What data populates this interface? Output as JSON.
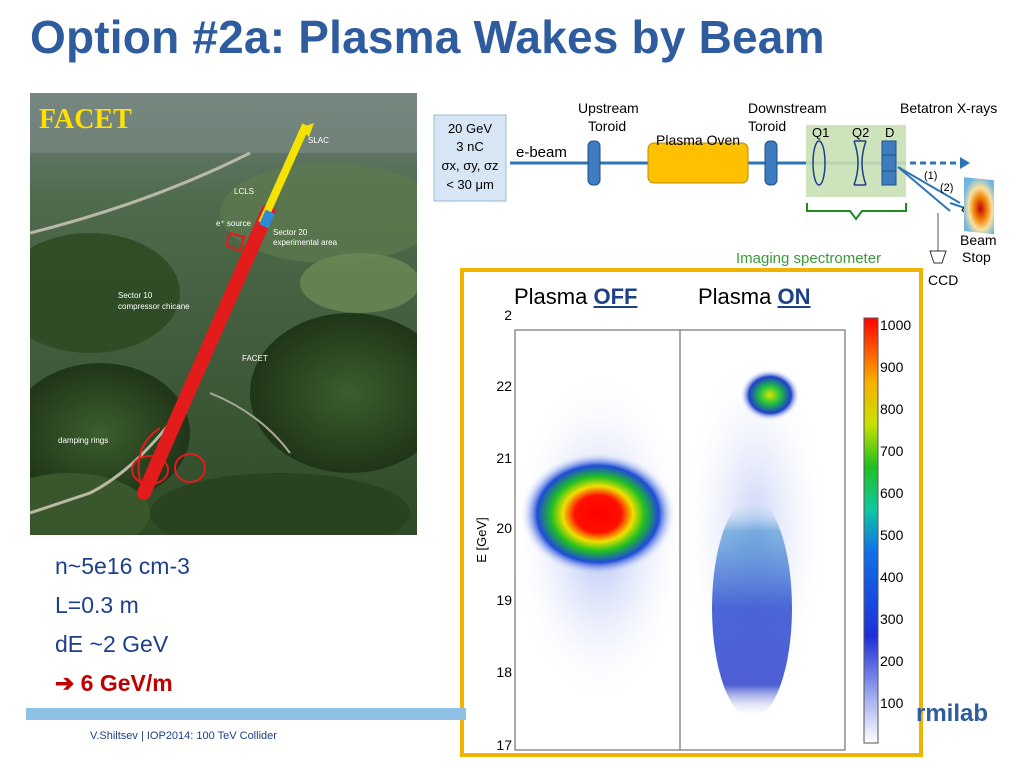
{
  "slide": {
    "title": "Option #2a: Plasma Wakes by Beam",
    "footer": "V.Shiltsev | IOP2014: 100 TeV Collider",
    "logo": "rmilab"
  },
  "photo": {
    "label": "FACET",
    "annotations": [
      "SLAC",
      "LCLS",
      "e⁺ source",
      "Sector 20",
      "experimental area",
      "Sector 10",
      "compressor chicane",
      "FACET",
      "damping rings"
    ]
  },
  "bullets": {
    "line1": "n~5e16 cm-3",
    "line2": "L=0.3 m",
    "line3": "dE ~2 GeV",
    "line4": "6 GeV/m",
    "arrow": "➔"
  },
  "schematic": {
    "beam_params": [
      "20  GeV",
      "3 nC",
      "σx, σy, σz",
      "< 30 μm"
    ],
    "ebeam": "e-beam",
    "upstream1": "Upstream",
    "upstream2": "Toroid",
    "oven": "Plasma Oven",
    "downstream1": "Downstream",
    "downstream2": "Toroid",
    "q1": "Q1",
    "q2": "Q2",
    "d": "D",
    "xrays": "Betatron X-rays",
    "p1": "(1)",
    "p2": "(2)",
    "beam_stop1": "Beam",
    "beam_stop2": "Stop",
    "ccd": "CCD",
    "spectrometer": "Imaging spectrometer",
    "colors": {
      "line": "#2E75B6",
      "oven": "#FFC000",
      "spectro_bg": "#C6E0B4",
      "spectro_text": "#3A9B3A"
    }
  },
  "plot": {
    "label_off_prefix": "Plasma ",
    "label_off_state": "OFF",
    "label_on_prefix": "Plasma ",
    "label_on_state": "ON",
    "ylabel": "E [GeV]",
    "yticks": [
      "17",
      "18",
      "19",
      "20",
      "21",
      "22",
      "2"
    ],
    "colorbar_ticks": [
      "100",
      "200",
      "300",
      "400",
      "500",
      "600",
      "700",
      "800",
      "900",
      "1000"
    ]
  }
}
